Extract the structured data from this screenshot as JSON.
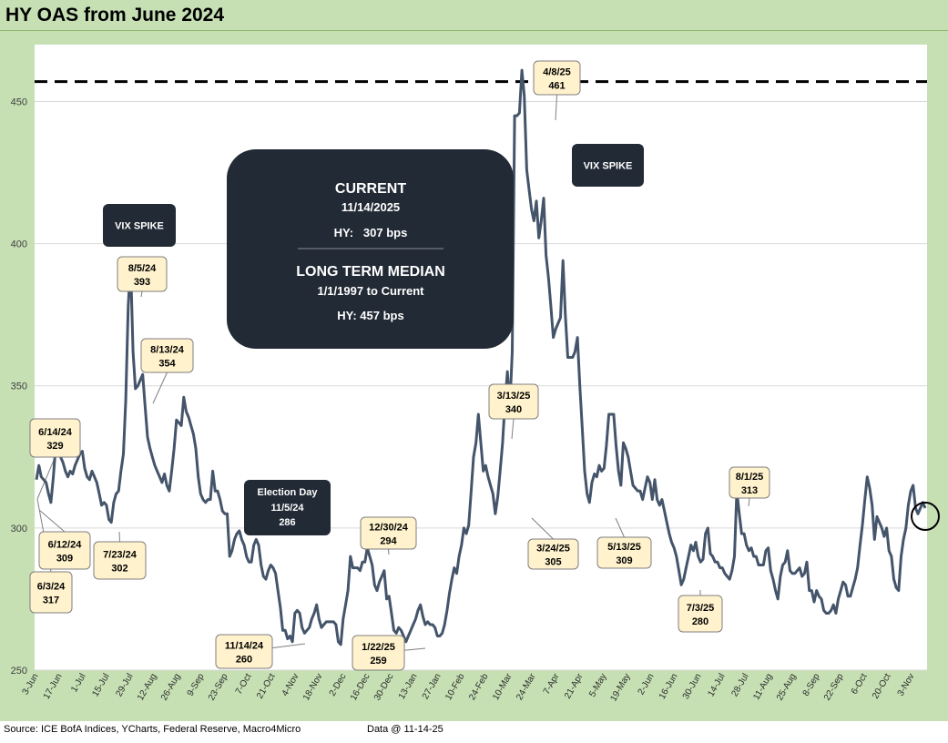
{
  "title": "HY OAS from June 2024",
  "footer": {
    "source": "Source: ICE BofA Indices, YCharts, Federal Reserve, Macro4Micro",
    "data_as_of": "Data @ 11-14-25"
  },
  "colors": {
    "line": "#44546a",
    "callout_fill": "#fff2cc",
    "dark_box": "#222a35",
    "frame": "#c6e0b4"
  },
  "info_box": {
    "current_heading": "CURRENT",
    "current_date": "11/14/2025",
    "current_value": "HY:   307 bps",
    "median_heading": "LONG TERM MEDIAN",
    "median_range": "1/1/1997 to Current",
    "median_value": "HY: 457 bps"
  },
  "chart_data": {
    "type": "line",
    "title": "HY OAS from June 2024",
    "ylabel": "",
    "xlabel": "",
    "ylim": [
      250,
      470
    ],
    "yticks": [
      250,
      300,
      350,
      400,
      450
    ],
    "grid": true,
    "xtick_labels": [
      "3-Jun",
      "17-Jun",
      "1-Jul",
      "15-Jul",
      "29-Jul",
      "12-Aug",
      "26-Aug",
      "9-Sep",
      "23-Sep",
      "7-Oct",
      "21-Oct",
      "4-Nov",
      "18-Nov",
      "2-Dec",
      "16-Dec",
      "30-Dec",
      "13-Jan",
      "27-Jan",
      "10-Feb",
      "24-Feb",
      "10-Mar",
      "24-Mar",
      "7-Apr",
      "21-Apr",
      "5-May",
      "19-May",
      "2-Jun",
      "16-Jun",
      "30-Jun",
      "14-Jul",
      "28-Jul",
      "11-Aug",
      "25-Aug",
      "8-Sep",
      "22-Sep",
      "6-Oct",
      "20-Oct",
      "3-Nov"
    ],
    "reference_line": {
      "value": 457,
      "label": "Long Term Median"
    },
    "series": [
      {
        "name": "HY OAS",
        "values": [
          317,
          322,
          318,
          317,
          316,
          312,
          309,
          318,
          329,
          327,
          325,
          323,
          320,
          318,
          320,
          319,
          322,
          324,
          326,
          327,
          321,
          318,
          317,
          320,
          318,
          316,
          312,
          308,
          309,
          308,
          303,
          302,
          309,
          312,
          313,
          320,
          326,
          345,
          378,
          393,
          362,
          349,
          350,
          352,
          354,
          343,
          332,
          328,
          325,
          322,
          320,
          318,
          316,
          319,
          315,
          313,
          320,
          328,
          338,
          337,
          336,
          346,
          341,
          339,
          336,
          333,
          328,
          318,
          312,
          310,
          309,
          310,
          310,
          320,
          313,
          313,
          310,
          306,
          305,
          305,
          290,
          292,
          296,
          298,
          299,
          296,
          294,
          290,
          288,
          288,
          294,
          296,
          294,
          287,
          283,
          282,
          285,
          287,
          286,
          284,
          278,
          272,
          264,
          264,
          261,
          262,
          260,
          270,
          271,
          270,
          265,
          263,
          264,
          265,
          268,
          270,
          273,
          268,
          265,
          266,
          267,
          267,
          267,
          267,
          266,
          260,
          259,
          268,
          273,
          278,
          290,
          286,
          286,
          286,
          285,
          288,
          288,
          293,
          290,
          287,
          280,
          278,
          281,
          283,
          285,
          275,
          276,
          270,
          264,
          263,
          265,
          264,
          262,
          260,
          262,
          264,
          266,
          268,
          271,
          273,
          269,
          266,
          267,
          266,
          266,
          265,
          262,
          262,
          263,
          266,
          271,
          277,
          282,
          286,
          284,
          290,
          294,
          300,
          298,
          301,
          313,
          325,
          330,
          340,
          330,
          320,
          322,
          318,
          315,
          312,
          305,
          311,
          320,
          330,
          344,
          355,
          342,
          362,
          445,
          445,
          446,
          461,
          452,
          426,
          419,
          412,
          408,
          415,
          402,
          408,
          416,
          396,
          388,
          378,
          367,
          370,
          372,
          374,
          394,
          375,
          360,
          360,
          360,
          362,
          367,
          350,
          335,
          320,
          312,
          309,
          316,
          319,
          318,
          322,
          320,
          321,
          329,
          340,
          340,
          340,
          329,
          320,
          315,
          330,
          328,
          325,
          320,
          315,
          314,
          313,
          313,
          310,
          314,
          318,
          316,
          310,
          317,
          310,
          308,
          310,
          306,
          302,
          298,
          295,
          293,
          290,
          285,
          280,
          282,
          286,
          290,
          294,
          292,
          295,
          290,
          288,
          289,
          298,
          300,
          291,
          290,
          288,
          288,
          286,
          286,
          284,
          283,
          282,
          285,
          290,
          313,
          305,
          298,
          298,
          294,
          292,
          293,
          290,
          290,
          287,
          287,
          287,
          292,
          293,
          285,
          282,
          278,
          275,
          283,
          287,
          288,
          292,
          285,
          284,
          284,
          285,
          286,
          283,
          284,
          288,
          278,
          278,
          274,
          278,
          276,
          275,
          271,
          270,
          270,
          271,
          273,
          270,
          275,
          278,
          281,
          280,
          276,
          276,
          279,
          282,
          286,
          294,
          301,
          310,
          318,
          314,
          308,
          296,
          304,
          302,
          300,
          297,
          300,
          292,
          290,
          282,
          279,
          278,
          290,
          296,
          300,
          308,
          313,
          315,
          307,
          305,
          307,
          309,
          307
        ]
      }
    ],
    "annotations": [
      {
        "date": "6/14/24",
        "value": "329"
      },
      {
        "date": "6/12/24",
        "value": "309"
      },
      {
        "date": "6/3/24",
        "value": "317"
      },
      {
        "date": "7/23/24",
        "value": "302"
      },
      {
        "date": "8/5/24",
        "value": "393"
      },
      {
        "date": "8/13/24",
        "value": "354"
      },
      {
        "date": "11/14/24",
        "value": "260"
      },
      {
        "date": "12/30/24",
        "value": "294"
      },
      {
        "date": "1/22/25",
        "value": "259"
      },
      {
        "date": "3/13/25",
        "value": "340"
      },
      {
        "date": "3/24/25",
        "value": "305"
      },
      {
        "date": "4/8/25",
        "value": "461"
      },
      {
        "date": "5/13/25",
        "value": "309"
      },
      {
        "date": "7/3/25",
        "value": "280"
      },
      {
        "date": "8/1/25",
        "value": "313"
      }
    ],
    "dark_labels": [
      {
        "text": "VIX SPIKE"
      },
      {
        "text": "VIX SPIKE"
      },
      {
        "text": "Election Day",
        "line2": "11/5/24",
        "line3": "286"
      }
    ]
  }
}
